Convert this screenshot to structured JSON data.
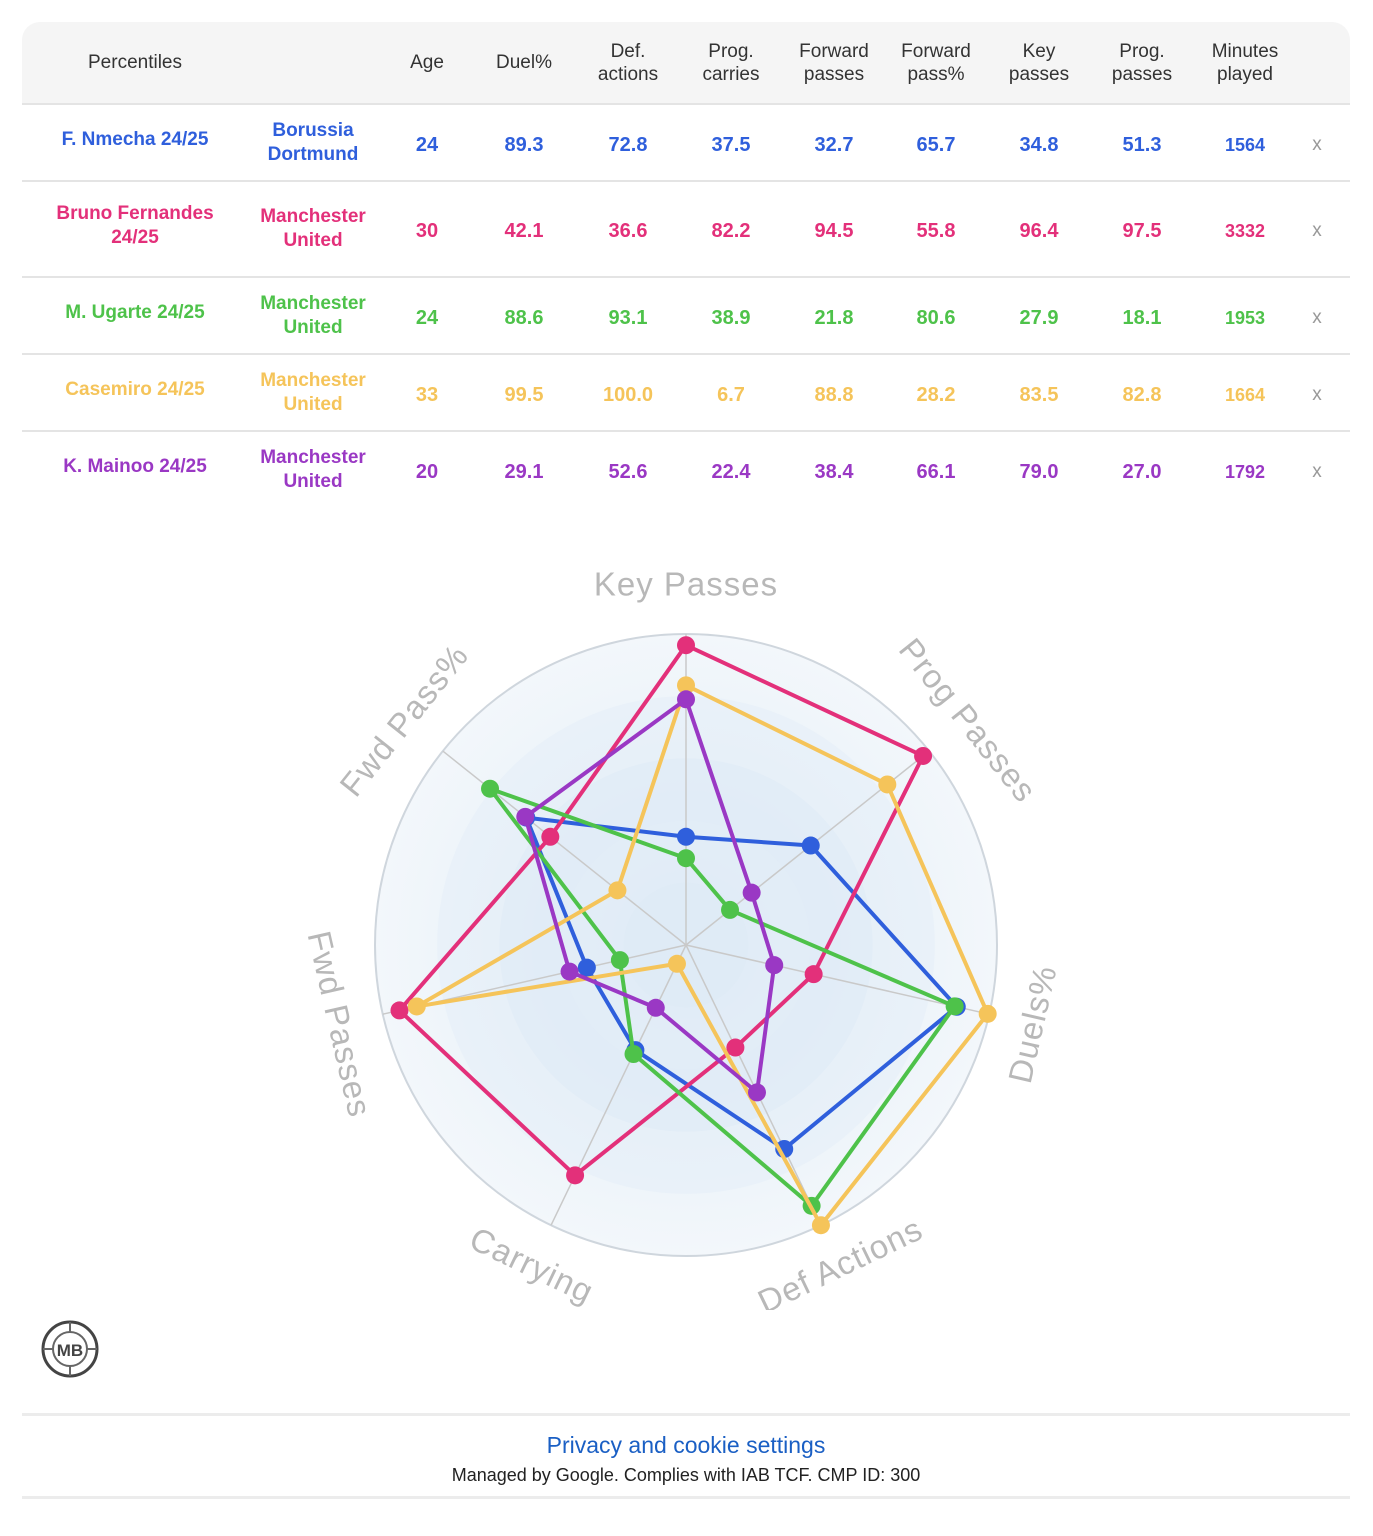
{
  "table": {
    "headers": [
      "Percentiles",
      "",
      "Age",
      "Duel%",
      "Def.\nactions",
      "Prog.\ncarries",
      "Forward\npasses",
      "Forward\npass%",
      "Key\npasses",
      "Prog.\npasses",
      "Minutes\nplayed"
    ],
    "remove_label": "x",
    "rows": [
      {
        "player": "F. Nmecha 24/25",
        "team": "Borussia Dortmund",
        "color": "#2f5fdc",
        "values": [
          "24",
          "89.3",
          "72.8",
          "37.5",
          "32.7",
          "65.7",
          "34.8",
          "51.3",
          "1564"
        ]
      },
      {
        "player": "Bruno Fernandes 24/25",
        "team": "Manchester United",
        "color": "#e3307a",
        "values": [
          "30",
          "42.1",
          "36.6",
          "82.2",
          "94.5",
          "55.8",
          "96.4",
          "97.5",
          "3332"
        ]
      },
      {
        "player": "M. Ugarte 24/25",
        "team": "Manchester United",
        "color": "#4ec24a",
        "values": [
          "24",
          "88.6",
          "93.1",
          "38.9",
          "21.8",
          "80.6",
          "27.9",
          "18.1",
          "1953"
        ]
      },
      {
        "player": "Casemiro 24/25",
        "team": "Manchester United",
        "color": "#f5c45a",
        "values": [
          "33",
          "99.5",
          "100.0",
          "6.7",
          "88.8",
          "28.2",
          "83.5",
          "82.8",
          "1664"
        ]
      },
      {
        "player": "K. Mainoo 24/25",
        "team": "Manchester United",
        "color": "#9a38c4",
        "values": [
          "20",
          "29.1",
          "52.6",
          "22.4",
          "38.4",
          "66.1",
          "79.0",
          "27.0",
          "1792"
        ]
      }
    ]
  },
  "chart_data": {
    "type": "radar",
    "axes": [
      "Key Passes",
      "Prog Passes",
      "Duels%",
      "Def Actions",
      "Carrying",
      "Fwd Passes",
      "Fwd Pass%"
    ],
    "range": [
      0,
      100
    ],
    "series": [
      {
        "name": "F. Nmecha 24/25",
        "color": "#2f5fdc",
        "values": [
          34.8,
          51.3,
          89.3,
          72.8,
          37.5,
          32.7,
          65.7
        ]
      },
      {
        "name": "Bruno Fernandes 24/25",
        "color": "#e3307a",
        "values": [
          96.4,
          97.5,
          42.1,
          36.6,
          82.2,
          94.5,
          55.8
        ]
      },
      {
        "name": "M. Ugarte 24/25",
        "color": "#4ec24a",
        "values": [
          27.9,
          18.1,
          88.6,
          93.1,
          38.9,
          21.8,
          80.6
        ]
      },
      {
        "name": "Casemiro 24/25",
        "color": "#f5c45a",
        "values": [
          83.5,
          82.8,
          99.5,
          100.0,
          6.7,
          88.8,
          28.2
        ]
      },
      {
        "name": "K. Mainoo 24/25",
        "color": "#9a38c4",
        "values": [
          79.0,
          27.0,
          29.1,
          52.6,
          22.4,
          38.4,
          66.1
        ]
      }
    ]
  },
  "logo": {
    "text": "MB"
  },
  "footer": {
    "privacy_link": "Privacy and cookie settings",
    "managed_text": "Managed by Google. Complies with IAB TCF. CMP ID: 300"
  }
}
